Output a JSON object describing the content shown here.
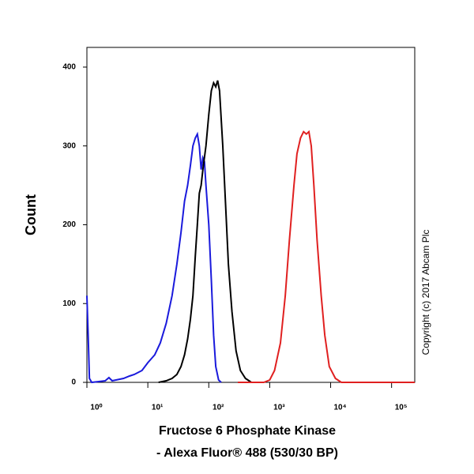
{
  "chart_data": {
    "type": "line",
    "xlabel": [
      "Fructose 6 Phosphate Kinase",
      "- Alexa Fluor® 488 (530/30 BP)"
    ],
    "ylabel": "Count",
    "annotation": "Copyright (c) 2017 Abcam Plc",
    "log_x": true,
    "xlim": [
      1,
      240000
    ],
    "ylim": [
      0,
      425
    ],
    "xticks": [
      {
        "value": 1,
        "label": "10⁰"
      },
      {
        "value": 10,
        "label": "10¹"
      },
      {
        "value": 100,
        "label": "10²"
      },
      {
        "value": 1000,
        "label": "10³"
      },
      {
        "value": 10000,
        "label": "10⁴"
      },
      {
        "value": 100000,
        "label": "10⁵"
      }
    ],
    "yticks": [
      0,
      100,
      200,
      300,
      400
    ],
    "series": [
      {
        "color": "#1a1adc",
        "x": [
          1,
          1.05,
          1.1,
          1.2,
          2,
          2.3,
          2.6,
          3,
          4,
          5,
          6,
          8,
          10,
          13,
          16,
          20,
          25,
          30,
          35,
          40,
          45,
          50,
          55,
          60,
          65,
          70,
          75,
          80,
          85,
          90,
          100,
          110,
          120,
          130,
          145,
          160
        ],
        "values": [
          110,
          60,
          5,
          0,
          2,
          6,
          2,
          3,
          5,
          8,
          10,
          15,
          25,
          35,
          50,
          75,
          110,
          150,
          190,
          230,
          250,
          275,
          300,
          310,
          315,
          300,
          270,
          285,
          280,
          250,
          200,
          130,
          60,
          20,
          3,
          0
        ]
      },
      {
        "color": "#000000",
        "x": [
          15,
          20,
          25,
          30,
          35,
          40,
          45,
          50,
          55,
          60,
          65,
          70,
          75,
          80,
          90,
          100,
          110,
          120,
          130,
          140,
          150,
          170,
          190,
          210,
          240,
          280,
          330,
          400,
          500
        ],
        "values": [
          0,
          2,
          5,
          10,
          20,
          35,
          55,
          80,
          110,
          160,
          200,
          240,
          250,
          270,
          300,
          340,
          370,
          380,
          375,
          383,
          370,
          300,
          220,
          150,
          90,
          40,
          15,
          5,
          0
        ]
      },
      {
        "color": "#e02020",
        "x": [
          300,
          800,
          1000,
          1200,
          1500,
          1800,
          2100,
          2500,
          2800,
          3200,
          3600,
          4000,
          4400,
          4800,
          5300,
          6000,
          7000,
          8000,
          9500,
          12000,
          15000,
          240000
        ],
        "values": [
          0,
          0,
          3,
          15,
          50,
          110,
          180,
          250,
          290,
          310,
          318,
          315,
          318,
          300,
          250,
          180,
          110,
          60,
          20,
          5,
          0,
          0
        ]
      }
    ]
  }
}
